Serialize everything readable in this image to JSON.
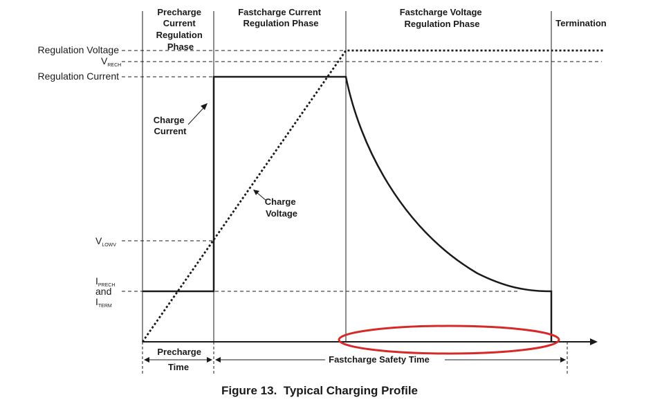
{
  "caption": "Figure 13.  Typical Charging Profile",
  "phases": {
    "precharge": [
      "Precharge",
      "Current",
      "Regulation",
      "Phase"
    ],
    "fastcharge_current": [
      "Fastcharge Current",
      "Regulation Phase"
    ],
    "fastcharge_voltage": [
      "Fastcharge Voltage",
      "Regulation Phase"
    ],
    "termination": "Termination"
  },
  "levels": {
    "regulation_voltage": "Regulation Voltage",
    "vrech_main": "V",
    "vrech_sub": "RECH",
    "regulation_current": "Regulation Current",
    "vlowv_main": "V",
    "vlowv_sub": "LOWV",
    "iprech_main": "I",
    "iprech_sub": "PRECH",
    "and": "and",
    "iterm_main": "I",
    "iterm_sub": "TERM"
  },
  "annotations": {
    "charge_current": [
      "Charge",
      "Current"
    ],
    "charge_voltage": [
      "Charge",
      "Voltage"
    ]
  },
  "timing": {
    "precharge_time": [
      "Precharge",
      "Time"
    ],
    "fastcharge_safety_time": "Fastcharge Safety Time"
  },
  "colors": {
    "ink": "#1a1a1a",
    "highlight": "#d42a2a"
  }
}
